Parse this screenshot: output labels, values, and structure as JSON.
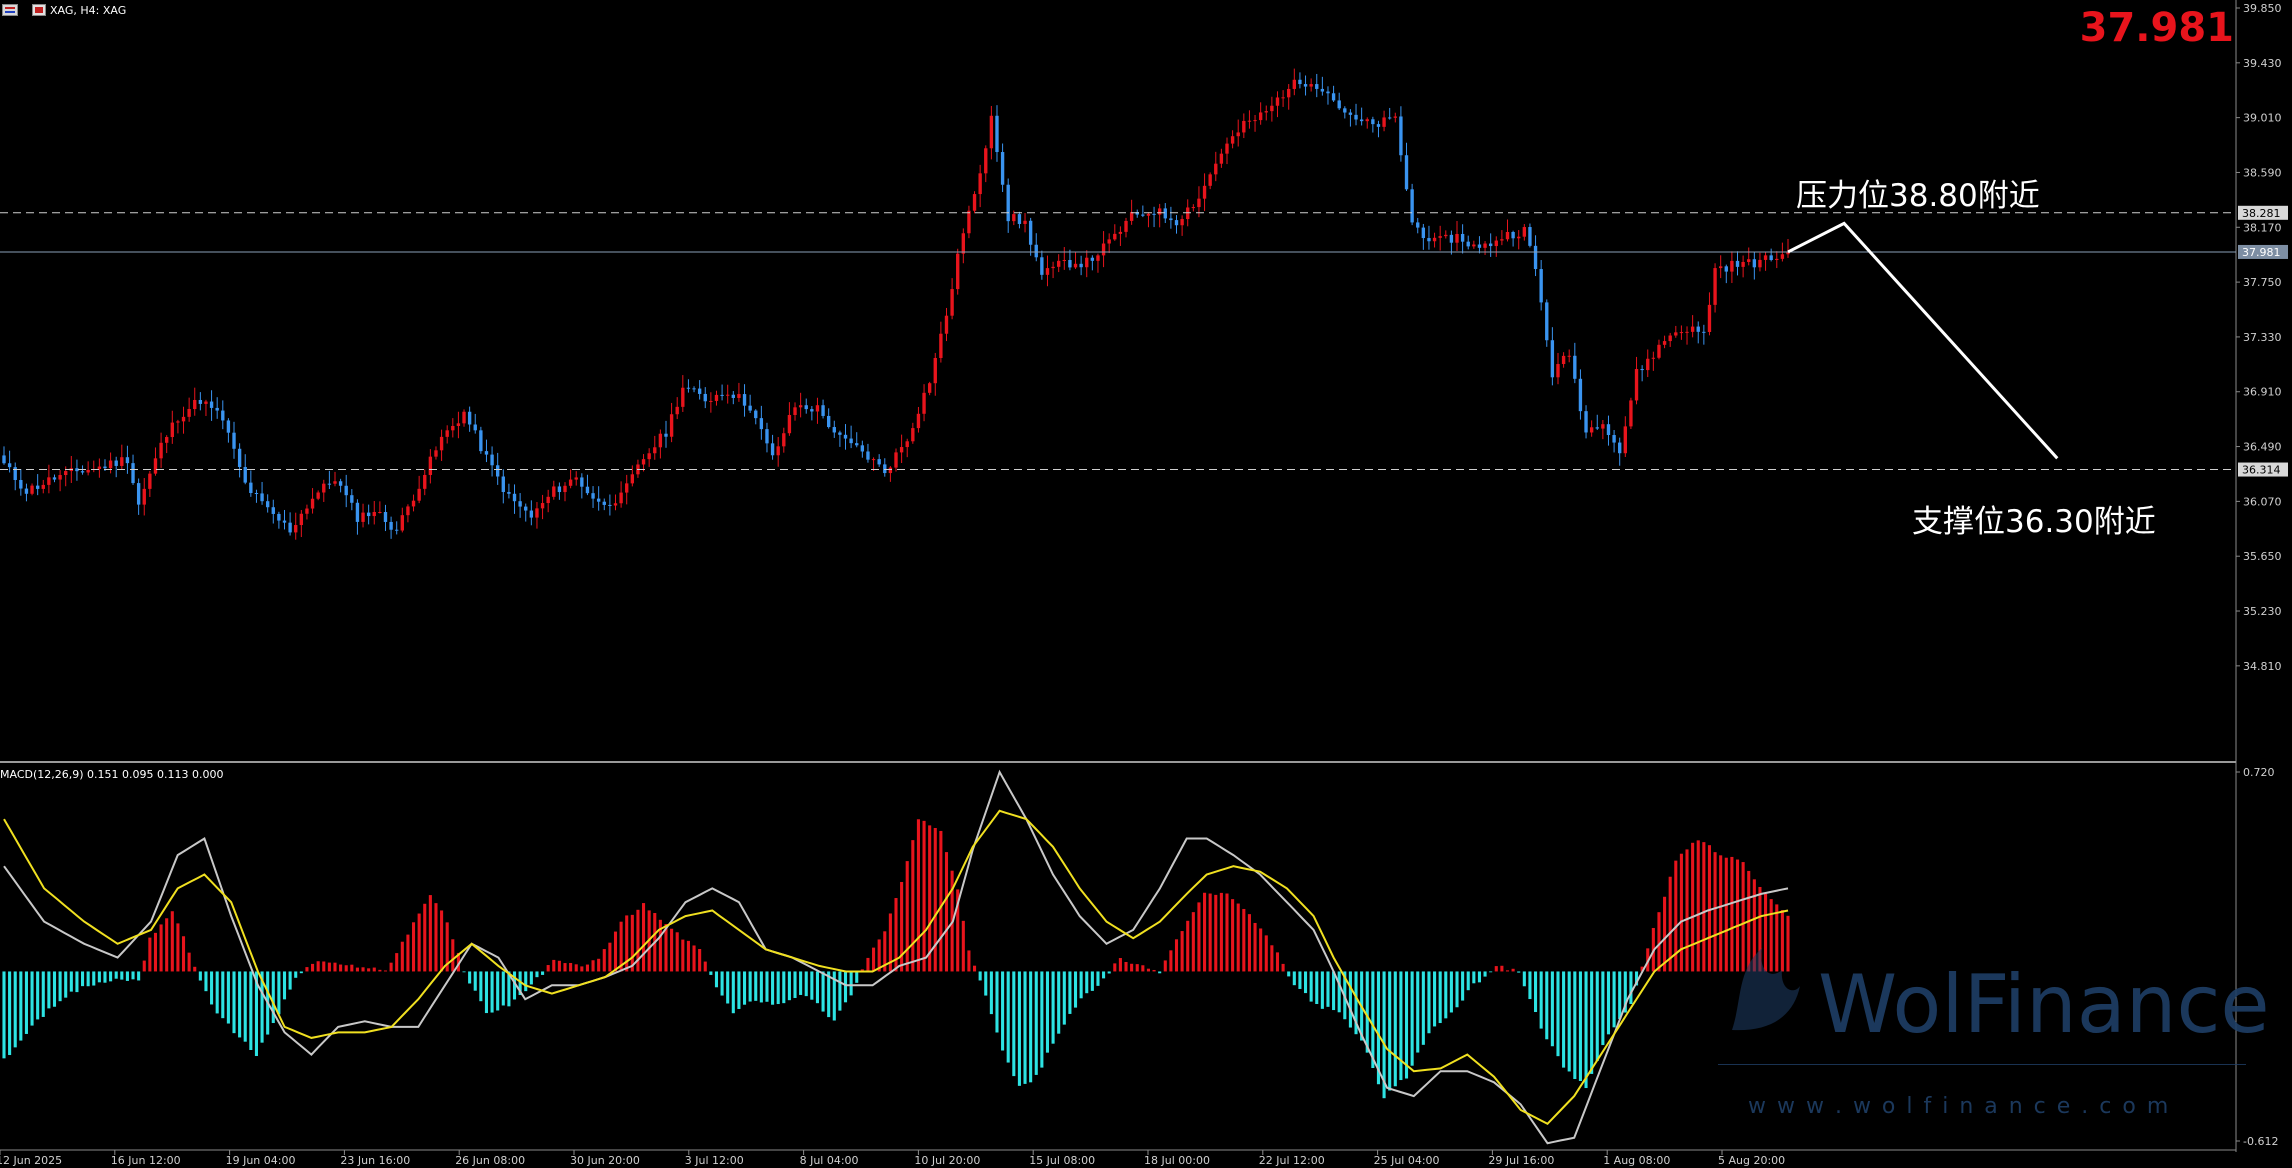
{
  "header": {
    "symbol_label": "XAG, H4:  XAG",
    "last_price": "37.981"
  },
  "macd_header": "MACD(12,26,9) 0.151 0.095 0.113 0.000",
  "colors": {
    "background": "#000000",
    "bull": "#e8141c",
    "bear": "#3a94f0",
    "price_big": "#e8141c",
    "hist_pos": "#e8141c",
    "hist_neg": "#2de3e3",
    "macd_line": "#c8c8c8",
    "signal_line": "#f0e020",
    "axis_text": "#cfcfcf",
    "dashed": "#cfcfcf",
    "annotation": "#ffffff",
    "watermark": "#1f3f66"
  },
  "annotations": {
    "resistance": "压力位38.80附近",
    "support": "支撑位36.30附近"
  },
  "watermark": {
    "brand": "WolFinance",
    "url": "w w w . w o l f i n a n c e . c o m"
  },
  "chart_data": [
    {
      "type": "candlestick",
      "title": "XAG, H4",
      "symbol": "XAG",
      "timeframe": "H4",
      "y_ticks": [
        "39.850",
        "39.430",
        "39.010",
        "38.590",
        "38.170",
        "37.750",
        "37.330",
        "36.910",
        "36.490",
        "36.070",
        "35.650",
        "35.230",
        "34.810"
      ],
      "ylim": [
        34.51,
        39.85
      ],
      "x_tick_labels": [
        "12 Jun 2025",
        "16 Jun 12:00",
        "19 Jun 04:00",
        "23 Jun 16:00",
        "26 Jun 08:00",
        "30 Jun 20:00",
        "3 Jul 12:00",
        "8 Jul 04:00",
        "10 Jul 20:00",
        "15 Jul 08:00",
        "18 Jul 00:00",
        "22 Jul 12:00",
        "25 Jul 04:00",
        "29 Jul 16:00",
        "1 Aug 08:00",
        "5 Aug 20:00"
      ],
      "close_waypoints": [
        [
          0,
          36.35
        ],
        [
          4,
          36.15
        ],
        [
          9,
          36.25
        ],
        [
          13,
          36.3
        ],
        [
          17,
          36.33
        ],
        [
          22,
          36.4
        ],
        [
          24,
          36.05
        ],
        [
          28,
          36.5
        ],
        [
          31,
          36.72
        ],
        [
          35,
          36.85
        ],
        [
          39,
          36.7
        ],
        [
          43,
          36.2
        ],
        [
          47,
          36.0
        ],
        [
          51,
          35.85
        ],
        [
          55,
          36.1
        ],
        [
          59,
          36.25
        ],
        [
          63,
          35.95
        ],
        [
          66,
          36.0
        ],
        [
          70,
          35.85
        ],
        [
          74,
          36.2
        ],
        [
          78,
          36.55
        ],
        [
          82,
          36.75
        ],
        [
          86,
          36.4
        ],
        [
          90,
          36.1
        ],
        [
          94,
          35.95
        ],
        [
          98,
          36.15
        ],
        [
          102,
          36.25
        ],
        [
          106,
          36.05
        ],
        [
          110,
          36.1
        ],
        [
          114,
          36.4
        ],
        [
          118,
          36.6
        ],
        [
          121,
          36.95
        ],
        [
          125,
          36.85
        ],
        [
          129,
          36.92
        ],
        [
          133,
          36.8
        ],
        [
          137,
          36.4
        ],
        [
          141,
          36.8
        ],
        [
          145,
          36.78
        ],
        [
          149,
          36.55
        ],
        [
          153,
          36.45
        ],
        [
          157,
          36.3
        ],
        [
          161,
          36.55
        ],
        [
          165,
          37.0
        ],
        [
          168,
          37.5
        ],
        [
          171,
          38.15
        ],
        [
          174,
          38.55
        ],
        [
          176,
          39.05
        ],
        [
          179,
          38.25
        ],
        [
          182,
          38.2
        ],
        [
          185,
          37.8
        ],
        [
          189,
          37.9
        ],
        [
          193,
          37.9
        ],
        [
          197,
          38.05
        ],
        [
          201,
          38.25
        ],
        [
          205,
          38.3
        ],
        [
          209,
          38.22
        ],
        [
          213,
          38.4
        ],
        [
          217,
          38.75
        ],
        [
          221,
          38.95
        ],
        [
          225,
          39.05
        ],
        [
          229,
          39.25
        ],
        [
          233,
          39.3
        ],
        [
          236,
          39.2
        ],
        [
          240,
          39.0
        ],
        [
          244,
          38.95
        ],
        [
          248,
          39.0
        ],
        [
          251,
          38.2
        ],
        [
          255,
          38.05
        ],
        [
          259,
          38.1
        ],
        [
          263,
          38.0
        ],
        [
          267,
          38.1
        ],
        [
          271,
          38.15
        ],
        [
          273,
          37.85
        ],
        [
          276,
          37.05
        ],
        [
          279,
          37.2
        ],
        [
          282,
          36.6
        ],
        [
          285,
          36.7
        ],
        [
          288,
          36.45
        ],
        [
          291,
          37.05
        ],
        [
          294,
          37.2
        ],
        [
          297,
          37.35
        ],
        [
          300,
          37.4
        ],
        [
          303,
          37.35
        ],
        [
          305,
          37.85
        ],
        [
          308,
          37.88
        ],
        [
          312,
          37.9
        ],
        [
          315,
          37.93
        ],
        [
          318,
          37.981
        ]
      ],
      "last_price": 37.981,
      "price_lines": [
        {
          "label": "38.281",
          "value": 38.281,
          "style": "dashed"
        },
        {
          "label": "37.981",
          "value": 37.981,
          "style": "solid"
        },
        {
          "label": "36.314",
          "value": 36.314,
          "style": "dashed"
        }
      ],
      "resistance_level": 38.8,
      "support_level": 36.3,
      "forecast_path": [
        [
          318,
          37.981
        ],
        [
          328,
          38.2
        ],
        [
          366,
          36.4
        ]
      ]
    },
    {
      "type": "bar",
      "title": "MACD(12,26,9)",
      "values_label": "0.151 0.095 0.113 0.000",
      "y_ticks": [
        "0.720",
        "-0.612"
      ],
      "ylim": [
        -0.612,
        0.72
      ],
      "histogram_waypoints": [
        [
          0,
          -0.32
        ],
        [
          5,
          -0.2
        ],
        [
          10,
          -0.1
        ],
        [
          15,
          -0.05
        ],
        [
          20,
          -0.03
        ],
        [
          24,
          -0.03
        ],
        [
          26,
          0.12
        ],
        [
          30,
          0.22
        ],
        [
          34,
          0.02
        ],
        [
          37,
          -0.12
        ],
        [
          41,
          -0.22
        ],
        [
          45,
          -0.3
        ],
        [
          49,
          -0.15
        ],
        [
          52,
          -0.02
        ],
        [
          56,
          0.04
        ],
        [
          60,
          0.02
        ],
        [
          64,
          0.02
        ],
        [
          68,
          0.0
        ],
        [
          72,
          0.14
        ],
        [
          76,
          0.28
        ],
        [
          79,
          0.18
        ],
        [
          82,
          0.0
        ],
        [
          86,
          -0.15
        ],
        [
          90,
          -0.12
        ],
        [
          94,
          -0.05
        ],
        [
          98,
          0.04
        ],
        [
          102,
          0.02
        ],
        [
          106,
          0.04
        ],
        [
          110,
          0.18
        ],
        [
          114,
          0.24
        ],
        [
          118,
          0.17
        ],
        [
          121,
          0.12
        ],
        [
          124,
          0.08
        ],
        [
          126,
          -0.02
        ],
        [
          130,
          -0.15
        ],
        [
          134,
          -0.1
        ],
        [
          138,
          -0.12
        ],
        [
          142,
          -0.08
        ],
        [
          145,
          -0.12
        ],
        [
          148,
          -0.18
        ],
        [
          151,
          -0.08
        ],
        [
          154,
          0.05
        ],
        [
          157,
          0.15
        ],
        [
          160,
          0.32
        ],
        [
          163,
          0.55
        ],
        [
          167,
          0.5
        ],
        [
          170,
          0.3
        ],
        [
          172,
          0.08
        ],
        [
          175,
          -0.08
        ],
        [
          178,
          -0.28
        ],
        [
          181,
          -0.42
        ],
        [
          184,
          -0.38
        ],
        [
          188,
          -0.22
        ],
        [
          192,
          -0.1
        ],
        [
          195,
          -0.05
        ],
        [
          199,
          0.05
        ],
        [
          202,
          0.02
        ],
        [
          206,
          0.0
        ],
        [
          210,
          0.15
        ],
        [
          214,
          0.28
        ],
        [
          218,
          0.28
        ],
        [
          222,
          0.2
        ],
        [
          226,
          0.1
        ],
        [
          230,
          -0.05
        ],
        [
          234,
          -0.12
        ],
        [
          238,
          -0.15
        ],
        [
          242,
          -0.25
        ],
        [
          246,
          -0.45
        ],
        [
          250,
          -0.38
        ],
        [
          254,
          -0.22
        ],
        [
          258,
          -0.15
        ],
        [
          262,
          -0.05
        ],
        [
          266,
          0.02
        ],
        [
          270,
          0.0
        ],
        [
          274,
          -0.2
        ],
        [
          278,
          -0.35
        ],
        [
          282,
          -0.42
        ],
        [
          286,
          -0.22
        ],
        [
          290,
          -0.12
        ],
        [
          294,
          0.15
        ],
        [
          298,
          0.4
        ],
        [
          302,
          0.48
        ],
        [
          306,
          0.42
        ],
        [
          310,
          0.4
        ],
        [
          314,
          0.28
        ],
        [
          318,
          0.2
        ]
      ],
      "macd_waypoints": [
        [
          0,
          0.38
        ],
        [
          6,
          0.18
        ],
        [
          12,
          0.1
        ],
        [
          17,
          0.05
        ],
        [
          22,
          0.18
        ],
        [
          26,
          0.42
        ],
        [
          30,
          0.48
        ],
        [
          34,
          0.2
        ],
        [
          38,
          -0.05
        ],
        [
          42,
          -0.22
        ],
        [
          46,
          -0.3
        ],
        [
          50,
          -0.2
        ],
        [
          54,
          -0.18
        ],
        [
          58,
          -0.2
        ],
        [
          62,
          -0.2
        ],
        [
          66,
          -0.05
        ],
        [
          70,
          0.1
        ],
        [
          74,
          0.05
        ],
        [
          78,
          -0.1
        ],
        [
          82,
          -0.05
        ],
        [
          86,
          -0.05
        ],
        [
          90,
          -0.02
        ],
        [
          94,
          0.02
        ],
        [
          98,
          0.12
        ],
        [
          102,
          0.25
        ],
        [
          106,
          0.3
        ],
        [
          110,
          0.25
        ],
        [
          114,
          0.08
        ],
        [
          118,
          0.05
        ],
        [
          122,
          0.0
        ],
        [
          126,
          -0.05
        ],
        [
          130,
          -0.05
        ],
        [
          134,
          0.02
        ],
        [
          138,
          0.05
        ],
        [
          142,
          0.18
        ],
        [
          145,
          0.44
        ],
        [
          149,
          0.72
        ],
        [
          153,
          0.55
        ],
        [
          157,
          0.35
        ],
        [
          161,
          0.2
        ],
        [
          165,
          0.1
        ],
        [
          169,
          0.15
        ],
        [
          173,
          0.3
        ],
        [
          177,
          0.48
        ],
        [
          180,
          0.48
        ],
        [
          184,
          0.42
        ],
        [
          188,
          0.35
        ],
        [
          192,
          0.25
        ],
        [
          196,
          0.15
        ],
        [
          199,
          0.0
        ],
        [
          203,
          -0.22
        ],
        [
          207,
          -0.42
        ],
        [
          211,
          -0.45
        ],
        [
          215,
          -0.36
        ],
        [
          219,
          -0.36
        ],
        [
          223,
          -0.4
        ],
        [
          227,
          -0.48
        ],
        [
          231,
          -0.62
        ],
        [
          235,
          -0.6
        ],
        [
          239,
          -0.35
        ],
        [
          243,
          -0.1
        ],
        [
          247,
          0.08
        ],
        [
          251,
          0.18
        ],
        [
          255,
          0.22
        ],
        [
          259,
          0.25
        ],
        [
          263,
          0.28
        ],
        [
          267,
          0.3
        ]
      ],
      "signal_waypoints": [
        [
          0,
          0.55
        ],
        [
          6,
          0.3
        ],
        [
          12,
          0.18
        ],
        [
          17,
          0.1
        ],
        [
          22,
          0.15
        ],
        [
          26,
          0.3
        ],
        [
          30,
          0.35
        ],
        [
          34,
          0.25
        ],
        [
          38,
          0.0
        ],
        [
          42,
          -0.2
        ],
        [
          46,
          -0.24
        ],
        [
          50,
          -0.22
        ],
        [
          54,
          -0.22
        ],
        [
          58,
          -0.2
        ],
        [
          62,
          -0.1
        ],
        [
          66,
          0.02
        ],
        [
          70,
          0.1
        ],
        [
          74,
          0.02
        ],
        [
          78,
          -0.05
        ],
        [
          82,
          -0.08
        ],
        [
          86,
          -0.05
        ],
        [
          90,
          -0.02
        ],
        [
          94,
          0.05
        ],
        [
          98,
          0.15
        ],
        [
          102,
          0.2
        ],
        [
          106,
          0.22
        ],
        [
          110,
          0.15
        ],
        [
          114,
          0.08
        ],
        [
          118,
          0.05
        ],
        [
          122,
          0.02
        ],
        [
          126,
          0.0
        ],
        [
          130,
          0.0
        ],
        [
          134,
          0.05
        ],
        [
          138,
          0.15
        ],
        [
          142,
          0.3
        ],
        [
          145,
          0.45
        ],
        [
          149,
          0.58
        ],
        [
          153,
          0.55
        ],
        [
          157,
          0.45
        ],
        [
          161,
          0.3
        ],
        [
          165,
          0.18
        ],
        [
          169,
          0.12
        ],
        [
          173,
          0.18
        ],
        [
          177,
          0.28
        ],
        [
          180,
          0.35
        ],
        [
          184,
          0.38
        ],
        [
          188,
          0.36
        ],
        [
          192,
          0.3
        ],
        [
          196,
          0.2
        ],
        [
          199,
          0.05
        ],
        [
          203,
          -0.12
        ],
        [
          207,
          -0.28
        ],
        [
          211,
          -0.36
        ],
        [
          215,
          -0.35
        ],
        [
          219,
          -0.3
        ],
        [
          223,
          -0.38
        ],
        [
          227,
          -0.5
        ],
        [
          231,
          -0.55
        ],
        [
          235,
          -0.45
        ],
        [
          239,
          -0.3
        ],
        [
          243,
          -0.15
        ],
        [
          247,
          0.0
        ],
        [
          251,
          0.08
        ],
        [
          255,
          0.12
        ],
        [
          259,
          0.16
        ],
        [
          263,
          0.2
        ],
        [
          267,
          0.22
        ]
      ]
    }
  ]
}
